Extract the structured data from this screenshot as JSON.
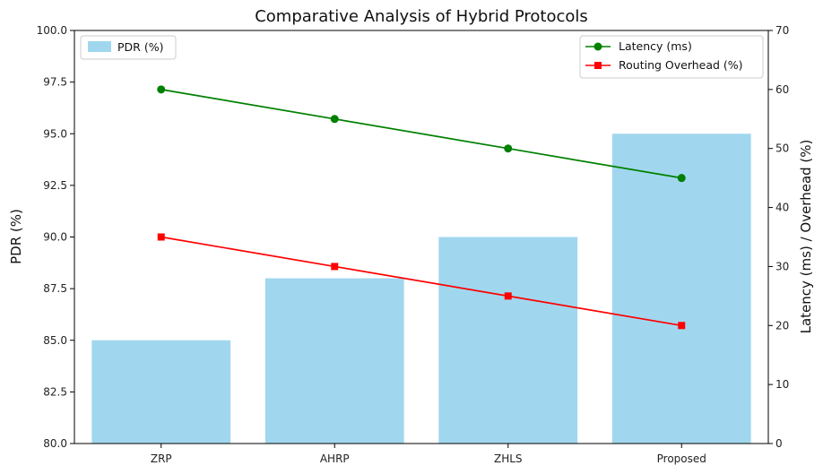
{
  "chart_data": {
    "type": "bar",
    "title": "Comparative Analysis of Hybrid Protocols",
    "categories": [
      "ZRP",
      "AHRP",
      "ZHLS",
      "Proposed"
    ],
    "bars": {
      "name": "PDR (%)",
      "values": [
        85,
        88,
        90,
        95
      ],
      "color": "#a0d7ee"
    },
    "lines": [
      {
        "name": "Latency (ms)",
        "values": [
          60,
          55,
          50,
          45
        ],
        "color": "#008000",
        "marker": "circle"
      },
      {
        "name": "Routing Overhead (%)",
        "values": [
          35,
          30,
          25,
          20
        ],
        "color": "#ff0000",
        "marker": "square"
      }
    ],
    "ylabel_left": "PDR (%)",
    "ylabel_right": "Latency (ms) / Overhead (%)",
    "ylim_left": [
      80,
      100
    ],
    "ylim_right": [
      0,
      70
    ],
    "yticks_left": [
      "80.0",
      "82.5",
      "85.0",
      "87.5",
      "90.0",
      "92.5",
      "95.0",
      "97.5",
      "100.0"
    ],
    "yticks_right": [
      "0",
      "10",
      "20",
      "30",
      "40",
      "50",
      "60",
      "70"
    ],
    "grid": false,
    "legend_bars_position": "top-left",
    "legend_lines_position": "top-right"
  }
}
